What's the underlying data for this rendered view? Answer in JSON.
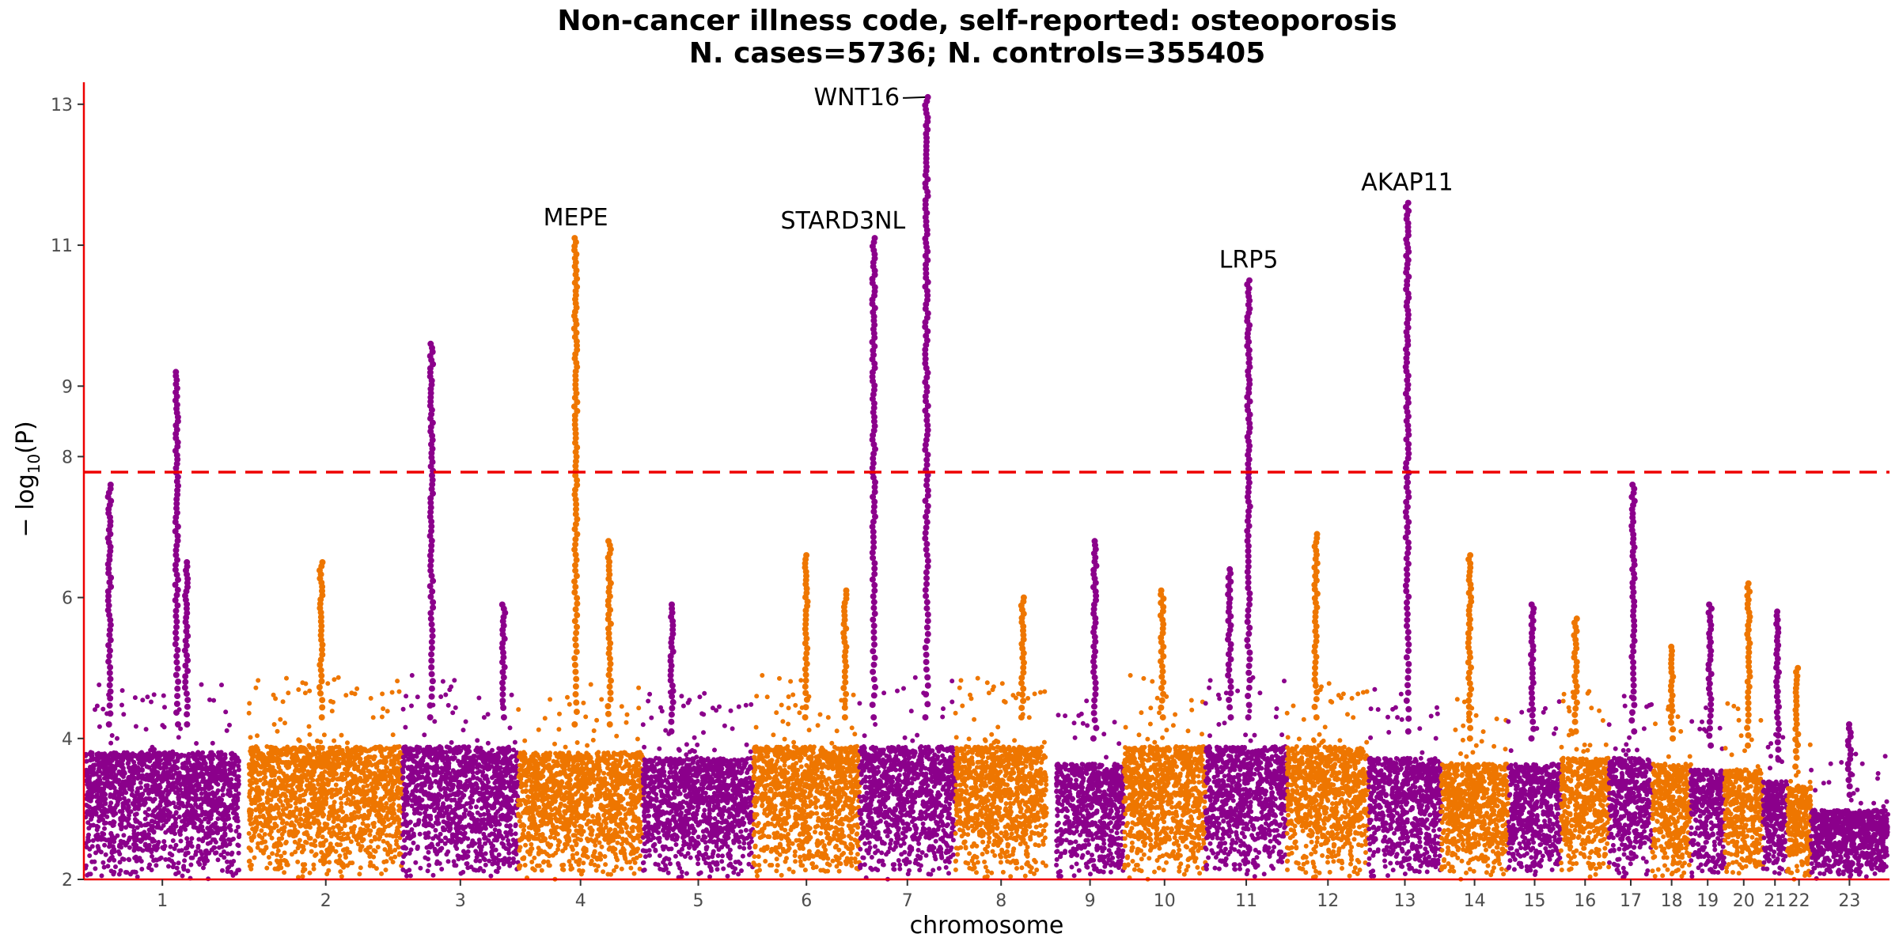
{
  "chart_data": {
    "type": "scatter",
    "subtype": "manhattan",
    "title": "Non-cancer illness code, self-reported: osteoporosis",
    "subtitle": "N. cases=5736; N. controls=355405",
    "xlabel": "chromosome",
    "ylabel_prefix": "− log",
    "ylabel_sub": "10",
    "ylabel_suffix": "(P)",
    "ylim": [
      2,
      13.2
    ],
    "yticks": [
      2,
      4,
      6,
      8,
      9,
      11,
      13
    ],
    "significance_threshold": 7.78,
    "grid": false,
    "legend": "none",
    "colors": {
      "odd": "#8B008B",
      "even": "#EE7600",
      "threshold": "#EE0000",
      "axis": "#EE0000"
    },
    "chromosomes": [
      {
        "label": "1",
        "start": 0,
        "end": 3.2,
        "base": 4.2,
        "peaks": [
          [
            0.5,
            7.6
          ],
          [
            1.9,
            9.2
          ],
          [
            2.1,
            6.5
          ]
        ]
      },
      {
        "label": "2",
        "start": 3.4,
        "end": 6.6,
        "base": 4.3,
        "peaks": [
          [
            4.9,
            6.5
          ]
        ]
      },
      {
        "label": "3",
        "start": 6.6,
        "end": 9.0,
        "base": 4.3,
        "peaks": [
          [
            7.2,
            9.6
          ],
          [
            8.7,
            5.9
          ]
        ]
      },
      {
        "label": "4",
        "start": 9.0,
        "end": 11.6,
        "base": 4.2,
        "peaks": [
          [
            10.2,
            11.1
          ],
          [
            10.9,
            6.8
          ]
        ]
      },
      {
        "label": "5",
        "start": 11.6,
        "end": 13.9,
        "base": 4.1,
        "peaks": [
          [
            12.2,
            5.9
          ]
        ]
      },
      {
        "label": "6",
        "start": 13.9,
        "end": 16.1,
        "base": 4.3,
        "peaks": [
          [
            15.0,
            6.6
          ],
          [
            15.8,
            6.1
          ]
        ]
      },
      {
        "label": "7",
        "start": 16.1,
        "end": 18.1,
        "base": 4.3,
        "peaks": [
          [
            16.4,
            11.1
          ],
          [
            17.5,
            13.1
          ]
        ]
      },
      {
        "label": "8",
        "start": 18.1,
        "end": 20.0,
        "base": 4.3,
        "peaks": [
          [
            19.5,
            6.0
          ]
        ]
      },
      {
        "label": "9",
        "start": 20.2,
        "end": 21.6,
        "base": 4.0,
        "peaks": [
          [
            21.0,
            6.8
          ]
        ]
      },
      {
        "label": "10",
        "start": 21.6,
        "end": 23.3,
        "base": 4.3,
        "peaks": [
          [
            22.4,
            6.1
          ]
        ]
      },
      {
        "label": "11",
        "start": 23.3,
        "end": 25.0,
        "base": 4.3,
        "peaks": [
          [
            24.2,
            10.5
          ],
          [
            23.8,
            6.4
          ]
        ]
      },
      {
        "label": "12",
        "start": 25.0,
        "end": 26.7,
        "base": 4.3,
        "peaks": [
          [
            25.6,
            6.9
          ]
        ]
      },
      {
        "label": "13",
        "start": 26.7,
        "end": 28.2,
        "base": 4.1,
        "peaks": [
          [
            27.5,
            11.6
          ]
        ]
      },
      {
        "label": "14",
        "start": 28.2,
        "end": 29.6,
        "base": 4.0,
        "peaks": [
          [
            28.8,
            6.6
          ]
        ]
      },
      {
        "label": "15",
        "start": 29.6,
        "end": 30.7,
        "base": 4.0,
        "peaks": [
          [
            30.1,
            5.9
          ]
        ]
      },
      {
        "label": "16",
        "start": 30.7,
        "end": 31.7,
        "base": 4.1,
        "peaks": [
          [
            31.0,
            5.7
          ]
        ]
      },
      {
        "label": "17",
        "start": 31.7,
        "end": 32.6,
        "base": 4.1,
        "peaks": [
          [
            32.2,
            7.6
          ]
        ]
      },
      {
        "label": "18",
        "start": 32.6,
        "end": 33.4,
        "base": 4.0,
        "peaks": [
          [
            33.0,
            5.3
          ]
        ]
      },
      {
        "label": "19",
        "start": 33.4,
        "end": 34.1,
        "base": 3.9,
        "peaks": [
          [
            33.8,
            5.9
          ]
        ]
      },
      {
        "label": "20",
        "start": 34.1,
        "end": 34.9,
        "base": 3.9,
        "peaks": [
          [
            34.6,
            6.2
          ]
        ]
      },
      {
        "label": "21",
        "start": 34.9,
        "end": 35.4,
        "base": 3.7,
        "peaks": [
          [
            35.2,
            5.8
          ]
        ]
      },
      {
        "label": "22",
        "start": 35.4,
        "end": 35.9,
        "base": 3.6,
        "peaks": [
          [
            35.6,
            5.0
          ]
        ]
      },
      {
        "label": "23",
        "start": 35.9,
        "end": 37.5,
        "base": 3.2,
        "peaks": [
          [
            36.7,
            4.2
          ]
        ]
      }
    ],
    "annotations": [
      {
        "label": "WNT16",
        "x": 17.5,
        "y": 13.1,
        "anchor": "end",
        "leader": true
      },
      {
        "label": "MEPE",
        "x": 10.2,
        "y": 11.1,
        "anchor": "middle",
        "leader": false
      },
      {
        "label": "STARD3NL",
        "x": 16.4,
        "y": 11.1,
        "anchor": "end",
        "leader": false
      },
      {
        "label": "AKAP11",
        "x": 27.5,
        "y": 11.6,
        "anchor": "middle",
        "leader": false
      },
      {
        "label": "LRP5",
        "x": 24.2,
        "y": 10.5,
        "anchor": "middle",
        "leader": false
      }
    ]
  }
}
